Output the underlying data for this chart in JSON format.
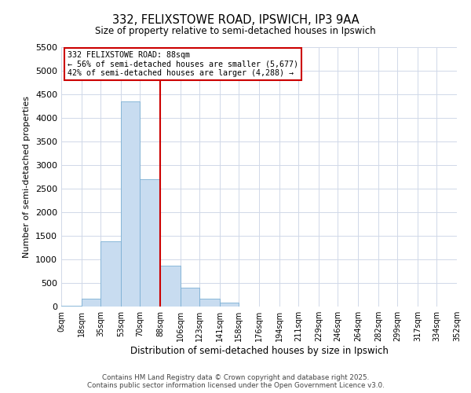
{
  "title": "332, FELIXSTOWE ROAD, IPSWICH, IP3 9AA",
  "subtitle": "Size of property relative to semi-detached houses in Ipswich",
  "xlabel": "Distribution of semi-detached houses by size in Ipswich",
  "ylabel": "Number of semi-detached properties",
  "bin_edges": [
    0,
    18,
    35,
    53,
    70,
    88,
    106,
    123,
    141,
    158,
    176,
    194,
    211,
    229,
    246,
    264,
    282,
    299,
    317,
    334,
    352
  ],
  "bin_labels": [
    "0sqm",
    "18sqm",
    "35sqm",
    "53sqm",
    "70sqm",
    "88sqm",
    "106sqm",
    "123sqm",
    "141sqm",
    "158sqm",
    "176sqm",
    "194sqm",
    "211sqm",
    "229sqm",
    "246sqm",
    "264sqm",
    "282sqm",
    "299sqm",
    "317sqm",
    "334sqm",
    "352sqm"
  ],
  "counts": [
    20,
    170,
    1390,
    4350,
    2700,
    870,
    400,
    170,
    90,
    0,
    0,
    0,
    0,
    0,
    0,
    0,
    0,
    0,
    0,
    0
  ],
  "bar_color": "#c8dcf0",
  "bar_edge_color": "#7bafd4",
  "property_size": 88,
  "vline_color": "#cc0000",
  "annotation_title": "332 FELIXSTOWE ROAD: 88sqm",
  "annotation_line1": "← 56% of semi-detached houses are smaller (5,677)",
  "annotation_line2": "42% of semi-detached houses are larger (4,288) →",
  "annotation_box_edge_color": "#cc0000",
  "ylim": [
    0,
    5500
  ],
  "yticks": [
    0,
    500,
    1000,
    1500,
    2000,
    2500,
    3000,
    3500,
    4000,
    4500,
    5000,
    5500
  ],
  "footer_line1": "Contains HM Land Registry data © Crown copyright and database right 2025.",
  "footer_line2": "Contains public sector information licensed under the Open Government Licence v3.0.",
  "bg_color": "#ffffff",
  "grid_color": "#d0d8e8"
}
